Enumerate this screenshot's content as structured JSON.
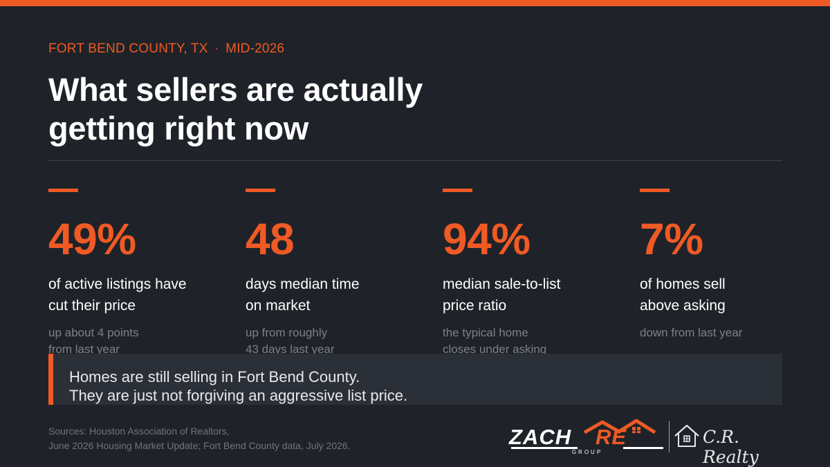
{
  "colors": {
    "accent": "#f05a24",
    "background": "#1f2329",
    "panel": "#2b3038"
  },
  "header": {
    "location": "FORT BEND COUNTY, TX",
    "separator": "·",
    "period": "MID-2026",
    "title_line1": "What sellers are actually",
    "title_line2": "getting right now"
  },
  "stats": [
    {
      "value": "49%",
      "label_line1": "of active listings have",
      "label_line2": "cut their price",
      "note_line1": "up about 4 points",
      "note_line2": "from last year"
    },
    {
      "value": "48",
      "label_line1": "days median time",
      "label_line2": "on market",
      "note_line1": "up from roughly",
      "note_line2": "43 days last year"
    },
    {
      "value": "94%",
      "label_line1": "median sale-to-list",
      "label_line2": "price ratio",
      "note_line1": "the typical home",
      "note_line2": "closes under asking"
    },
    {
      "value": "7%",
      "label_line1": "of homes sell",
      "label_line2": "above asking",
      "note_line1": "down from last year",
      "note_line2": ""
    }
  ],
  "callout": {
    "line1": "Homes are still selling in Fort Bend County.",
    "line2": "They are just not forgiving an aggressive list price."
  },
  "sources": {
    "line1": "Sources: Houston Association of Realtors,",
    "line2": "June 2026 Housing Market Update; Fort Bend County data, July 2026."
  },
  "logos": {
    "zach_main": "ZACHRE",
    "zach_sub": "GROUP",
    "cr_name": "C.R. Realty"
  }
}
